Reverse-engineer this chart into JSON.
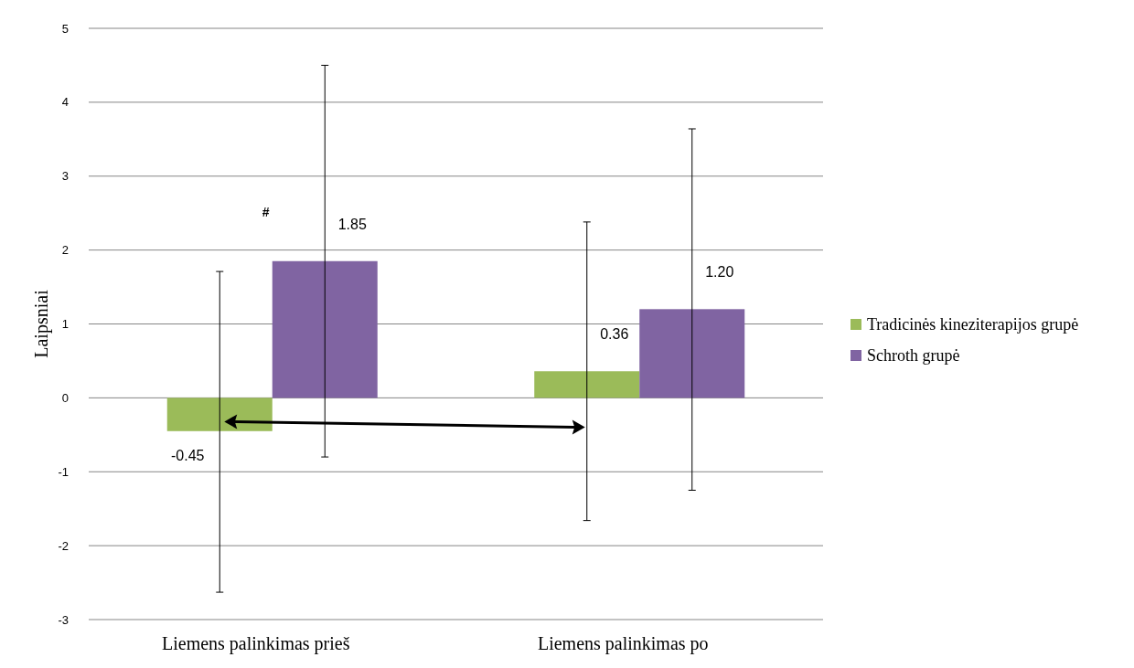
{
  "chart_data": {
    "type": "bar",
    "ylabel": "Laipsniai",
    "categories": [
      "Liemens palinkimas prieš",
      "Liemens palinkimas po"
    ],
    "series": [
      {
        "name": "Tradicinės kineziterapijos grupė",
        "color": "#9bbb59",
        "values": [
          -0.45,
          0.36
        ],
        "errors": [
          [
            -2.63,
            1.71
          ],
          [
            -1.66,
            2.38
          ]
        ],
        "value_labels": [
          "-0.45",
          "0.36"
        ]
      },
      {
        "name": "Schroth grupė",
        "color": "#8064a2",
        "values": [
          1.85,
          1.2
        ],
        "errors": [
          [
            -0.8,
            4.5
          ],
          [
            -1.25,
            3.64
          ]
        ],
        "value_labels": [
          "1.85",
          "1.20"
        ]
      }
    ],
    "ylim": [
      -3,
      5
    ],
    "yticks": [
      -3,
      -2,
      -1,
      0,
      1,
      2,
      3,
      4,
      5
    ],
    "grid": "y",
    "legend": "right",
    "annotations": [
      "#"
    ]
  }
}
